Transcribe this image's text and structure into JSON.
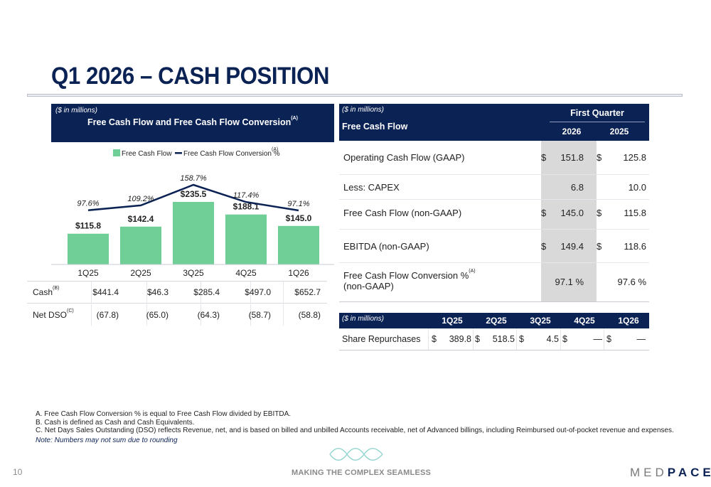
{
  "page": {
    "title": "Q1 2026 – CASH POSITION",
    "page_number": "10",
    "tagline": "MAKING THE COMPLEX SEAMLESS",
    "logo_text_a": "MED",
    "logo_text_b": "PACE",
    "logo_text_c": "E"
  },
  "left_chart": {
    "units": "($ in millions)",
    "title": "Free Cash Flow and Free Cash Flow Conversion",
    "title_sup": "(A)",
    "legend_bar": "Free Cash Flow",
    "legend_line": "Free Cash Flow Conversion %",
    "legend_line_sup": "(A)"
  },
  "chart_data": {
    "type": "bar",
    "title": "Free Cash Flow and Free Cash Flow Conversion",
    "categories": [
      "1Q25",
      "2Q25",
      "3Q25",
      "4Q25",
      "1Q26"
    ],
    "series": [
      {
        "name": "Free Cash Flow",
        "type": "bar",
        "values": [
          115.8,
          142.4,
          235.5,
          188.1,
          145.0
        ],
        "labels": [
          "$115.8",
          "$142.4",
          "$235.5",
          "$188.1",
          "$145.0"
        ]
      },
      {
        "name": "Free Cash Flow Conversion %",
        "type": "line",
        "values": [
          97.6,
          109.2,
          158.7,
          117.4,
          97.1
        ],
        "labels": [
          "97.6%",
          "109.2%",
          "158.7%",
          "117.4%",
          "97.1%"
        ]
      }
    ],
    "legend_position": "top-center",
    "grid": false,
    "colors": {
      "bar": "#6fcf97",
      "line": "#0b2254"
    }
  },
  "left_table": {
    "rows": [
      {
        "label": "Cash",
        "sup": "(B)",
        "values": [
          "$441.4",
          "$46.3",
          "$285.4",
          "$497.0",
          "$652.7"
        ]
      },
      {
        "label": "Net DSO",
        "sup": "(C)",
        "values": [
          "(67.8)",
          "(65.0)",
          "(64.3)",
          "(58.7)",
          "(58.8)"
        ]
      }
    ]
  },
  "right_table": {
    "units": "($ in millions)",
    "title": "Free Cash Flow",
    "period_header": "First Quarter",
    "col1": "2026",
    "col2": "2025",
    "rows": [
      {
        "label": "Operating Cash Flow (GAAP)",
        "d1": "$",
        "v1": "151.8",
        "d2": "$",
        "v2": "125.8"
      },
      {
        "label": "Less: CAPEX",
        "d1": "",
        "v1": "6.8",
        "d2": "",
        "v2": "10.0"
      },
      {
        "label": "Free Cash Flow (non-GAAP)",
        "d1": "$",
        "v1": "145.0",
        "d2": "$",
        "v2": "115.8"
      },
      {
        "label": "EBITDA (non-GAAP)",
        "d1": "$",
        "v1": "149.4",
        "d2": "$",
        "v2": "118.6"
      }
    ],
    "conversion": {
      "label_line1": "Free Cash Flow Conversion %",
      "sup": "(A)",
      "label_line2": "(non-GAAP)",
      "v1": "97.1",
      "v2": "97.6",
      "pct": "%"
    }
  },
  "share_table": {
    "units": "($ in millions)",
    "quarters": [
      "1Q25",
      "2Q25",
      "3Q25",
      "4Q25",
      "1Q26"
    ],
    "label": "Share Repurchases",
    "dollar": "$",
    "values": [
      "389.8",
      "518.5",
      "4.5",
      "—",
      "—"
    ]
  },
  "footnotes": [
    "A.  Free Cash Flow Conversion % is equal to Free Cash Flow divided by EBITDA.",
    "B.  Cash is defined as Cash and Cash Equivalents.",
    "C.  Net Days Sales Outstanding (DSO) reflects Revenue, net, and is based on billed and unbilled Accounts receivable, net of Advanced billings, including Reimbursed out-of-pocket revenue and expenses."
  ],
  "note": "Note: Numbers may not sum due to rounding"
}
